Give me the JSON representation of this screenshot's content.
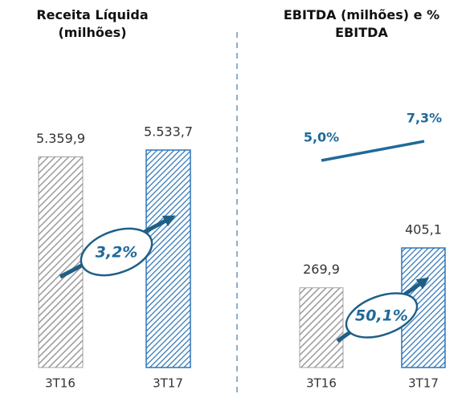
{
  "chart_data": [
    {
      "type": "bar",
      "title": "Receita Líquida (milhões)",
      "categories": [
        "3T16",
        "3T17"
      ],
      "values": [
        5359.9,
        5533.7
      ],
      "value_labels": [
        "5.359,9",
        "5.533,7"
      ],
      "colors": [
        "#8c8c8c",
        "#2e75b6"
      ],
      "annotation": "3,2%"
    },
    {
      "type": "combo",
      "title": "EBITDA (milhões) e % EBITDA",
      "categories": [
        "3T16",
        "3T17"
      ],
      "values": [
        269.9,
        405.1
      ],
      "value_labels": [
        "269,9",
        "405,1"
      ],
      "colors": [
        "#8c8c8c",
        "#2e75b6"
      ],
      "line": {
        "values": [
          5.0,
          7.3
        ],
        "value_labels": [
          "5,0%",
          "7,3%"
        ],
        "color": "#1f6a99"
      },
      "annotation": "50,1%"
    }
  ]
}
